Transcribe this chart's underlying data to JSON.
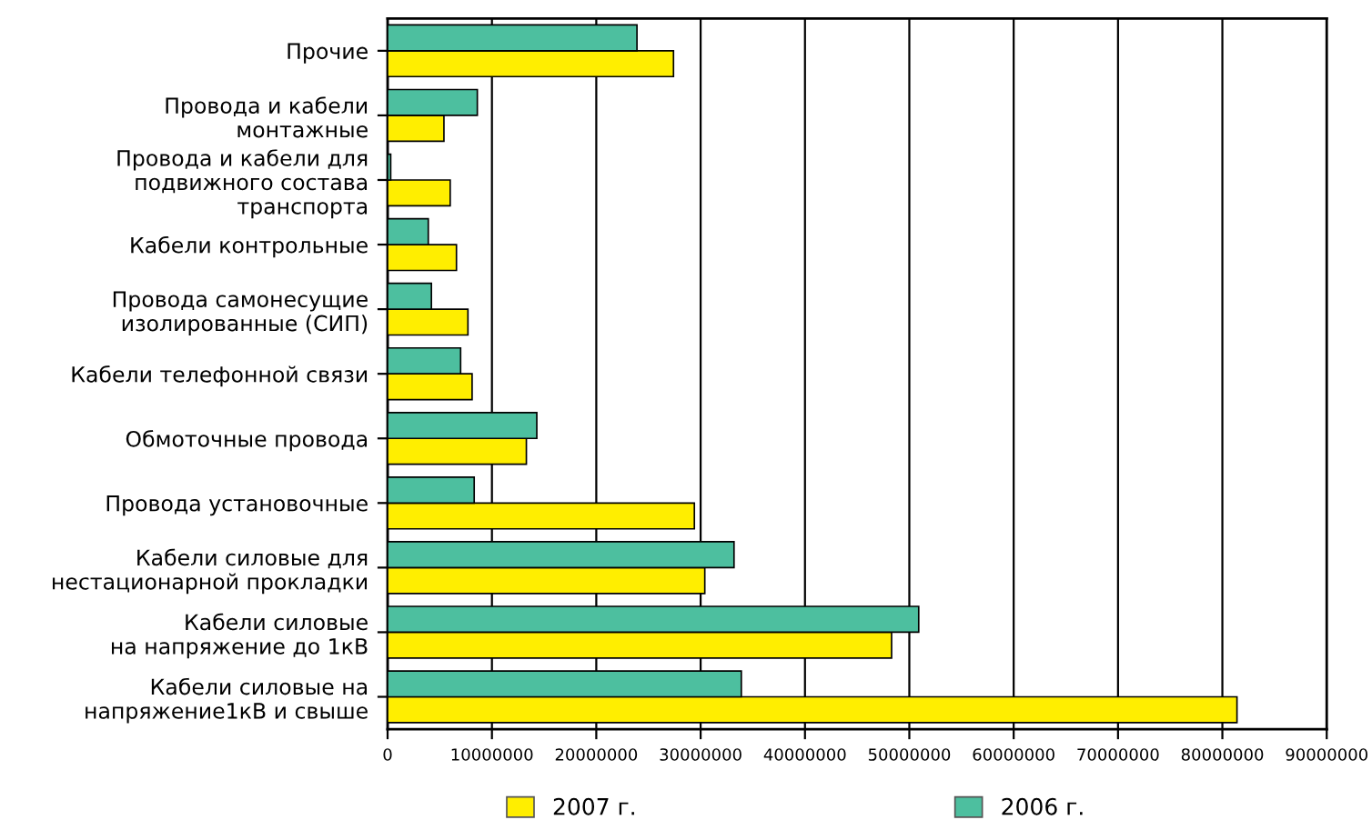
{
  "chart_data": {
    "type": "bar",
    "orientation": "horizontal",
    "categories": [
      "Прочие",
      "Провода и кабели\nмонтажные",
      "Провода и кабели для\nподвижного состава\nтранспорта",
      "Кабели контрольные",
      "Провода самонесущие\nизолированные (СИП)",
      "Кабели телефонной связи",
      "Обмоточные провода",
      "Провода установочные",
      "Кабели силовые для\nнестационарной прокладки",
      "Кабели силовые\nна напряжение до 1кВ",
      "Кабели силовые на\nнапряжение1кВ и свыше"
    ],
    "series": [
      {
        "name": "2007 г.",
        "color": "#ffee00",
        "values": [
          27400000,
          5400000,
          6000000,
          6600000,
          7700000,
          8100000,
          13300000,
          29400000,
          30400000,
          48300000,
          81400000
        ]
      },
      {
        "name": "2006 г.",
        "color": "#4dbf9f",
        "values": [
          23900000,
          8600000,
          300000,
          3900000,
          4200000,
          7000000,
          14300000,
          8300000,
          33200000,
          50900000,
          33900000
        ]
      }
    ],
    "xlim": [
      0,
      90000000
    ],
    "xticks": [
      0,
      10000000,
      20000000,
      30000000,
      40000000,
      50000000,
      60000000,
      70000000,
      80000000,
      90000000
    ],
    "grid": "x",
    "legend": "bottom"
  }
}
